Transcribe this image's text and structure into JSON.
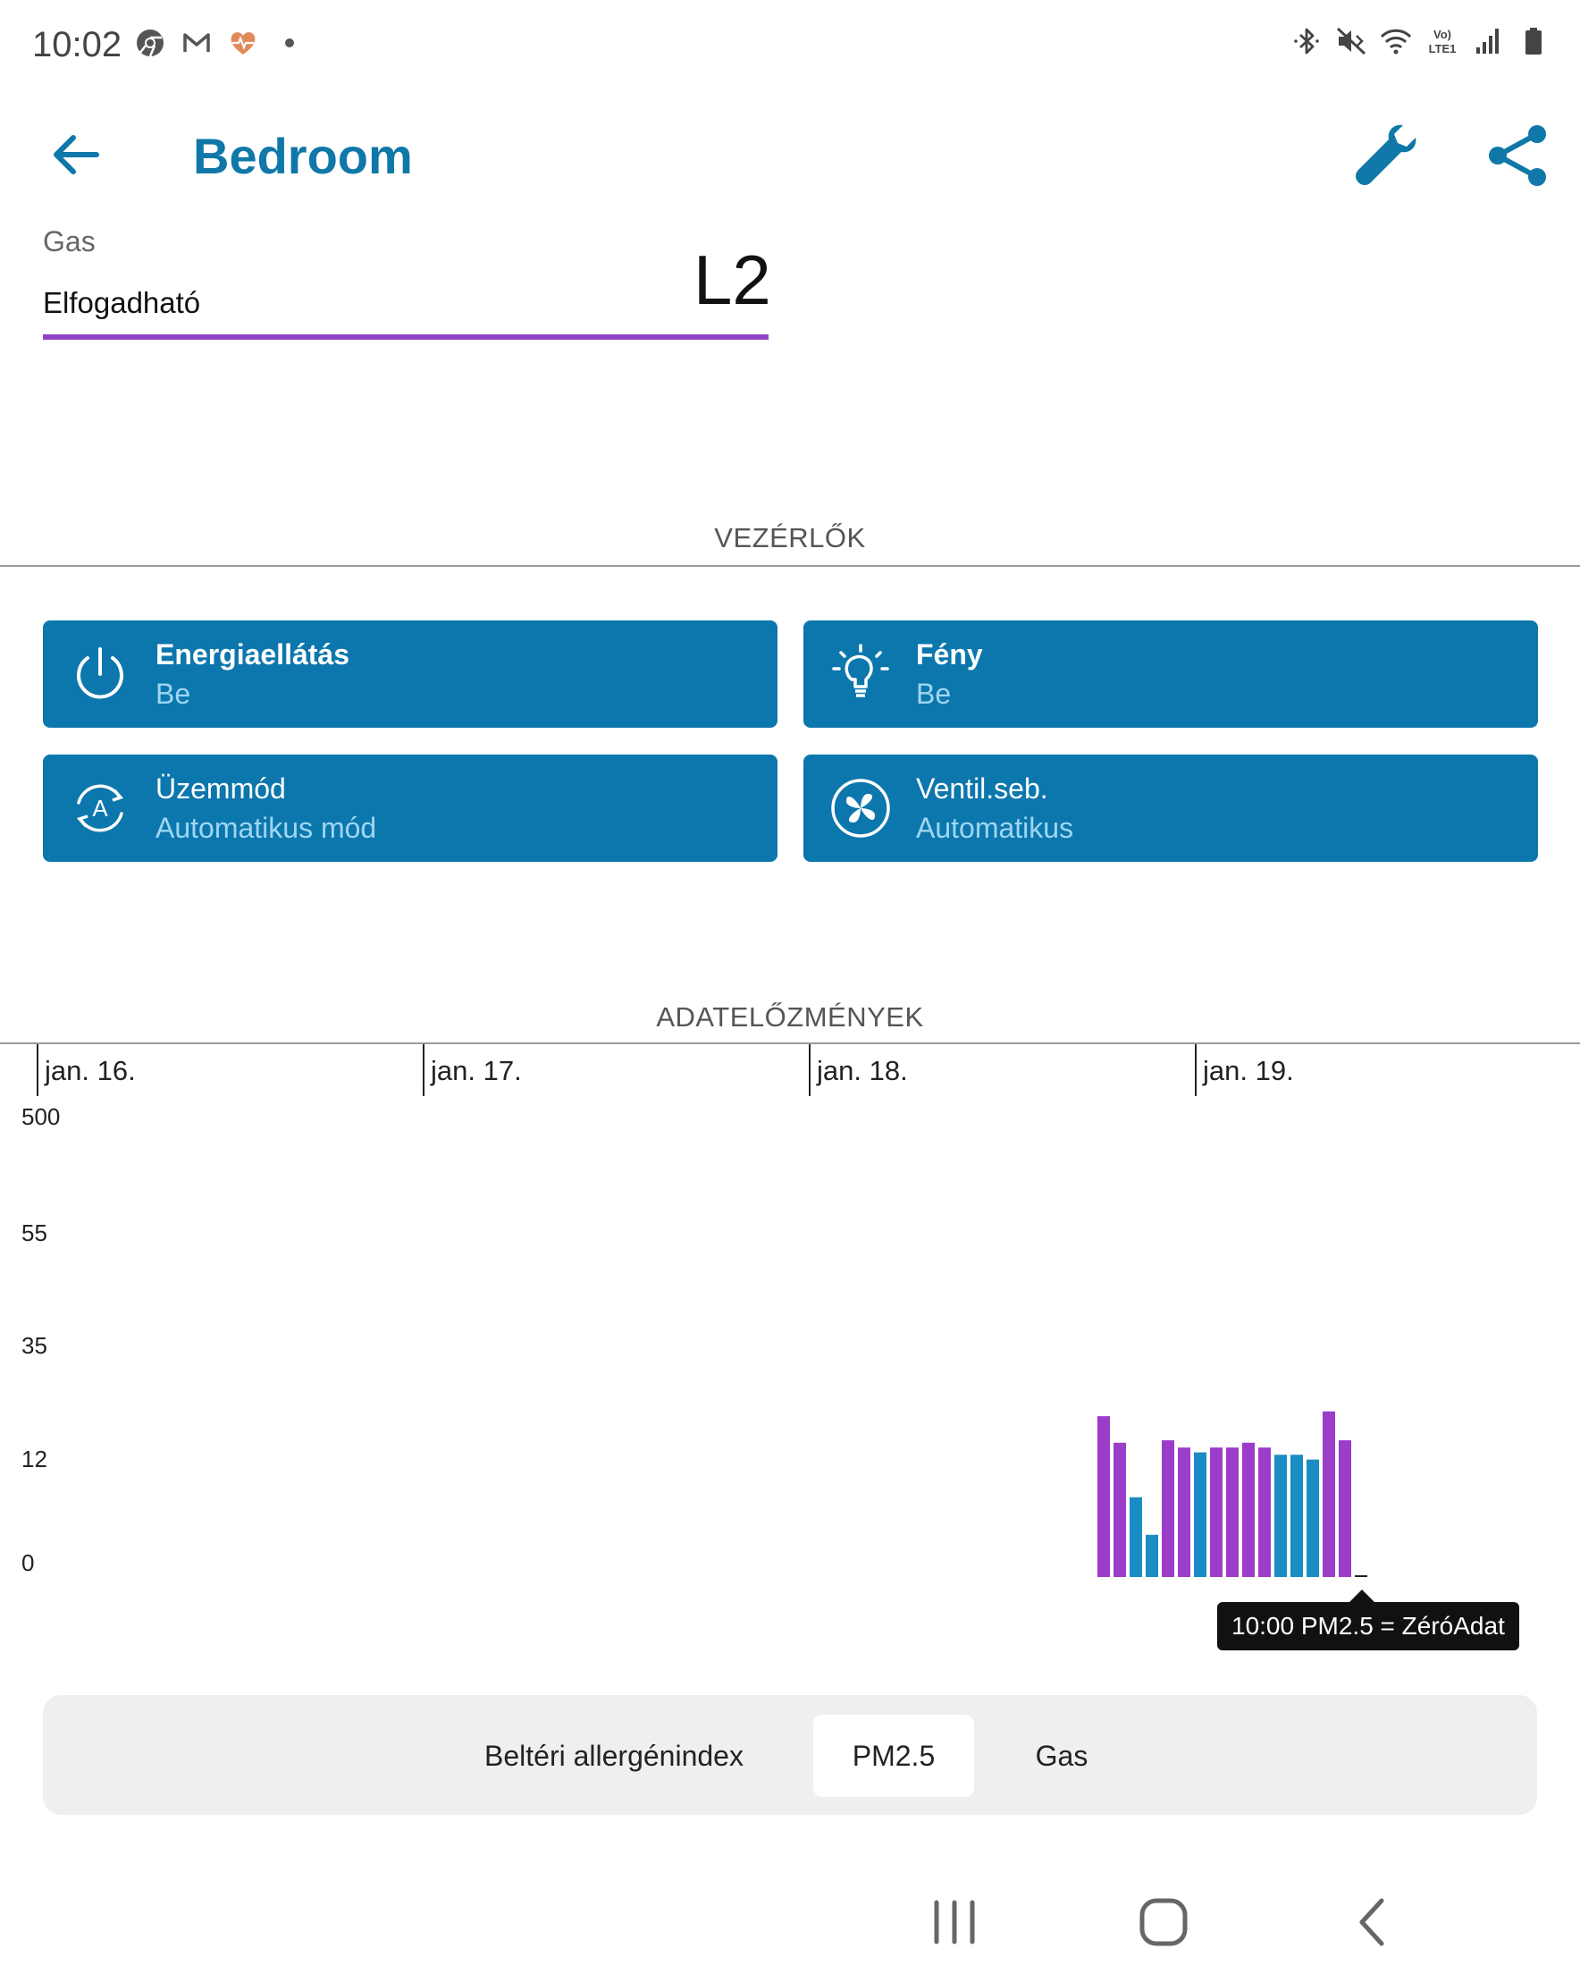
{
  "status_bar": {
    "time": "10:02",
    "left_icons": [
      "chrome-icon",
      "gmail-icon",
      "health-icon",
      "notification-dot-icon"
    ],
    "right_icons": [
      "bluetooth-icon",
      "mute-icon",
      "wifi-icon",
      "volte-icon",
      "signal-icon",
      "battery-icon"
    ],
    "volte_text": "Vo) LTE1"
  },
  "header": {
    "title": "Bedroom",
    "back_icon": "arrow-left-icon",
    "settings_icon": "wrench-icon",
    "share_icon": "share-icon",
    "accent_color": "#0f78a8"
  },
  "gas_field": {
    "label": "Gas",
    "value": "Elfogadható",
    "level": "L2",
    "underline_color": "#8e44c8"
  },
  "controls": {
    "section_title": "VEZÉRLŐK",
    "tile_color": "#0c77ad",
    "tiles": [
      {
        "title": "Energiaellátás",
        "subtitle": "Be",
        "icon": "power-icon"
      },
      {
        "title": "Fény",
        "subtitle": "Be",
        "icon": "lightbulb-icon"
      },
      {
        "title": "Üzemmód",
        "subtitle": "Automatikus mód",
        "icon": "auto-mode-icon"
      },
      {
        "title": "Ventil.seb.",
        "subtitle": "Automatikus",
        "icon": "fan-icon"
      }
    ]
  },
  "history": {
    "section_title": "ADATELŐZMÉNYEK",
    "tooltip": "10:00 PM2.5 = ZéróAdat",
    "tabs": [
      {
        "label": "Beltéri allergénindex",
        "active": false
      },
      {
        "label": "PM2.5",
        "active": true
      },
      {
        "label": "Gas",
        "active": false
      }
    ]
  },
  "chart_data": {
    "type": "bar",
    "date_labels": [
      "jan. 16.",
      "jan. 17.",
      "jan. 18.",
      "jan. 19."
    ],
    "y_tick_labels": [
      "500",
      "55",
      "35",
      "12",
      "0"
    ],
    "y_scale": "banded (non-linear)",
    "grid": false,
    "colors": {
      "purple": "#9b3dc9",
      "blue": "#1a8cc4"
    },
    "values": [
      22,
      16.5,
      8.5,
      4.5,
      17,
      15.5,
      14.5,
      15.5,
      15.5,
      16.5,
      15.5,
      14,
      14,
      13,
      23,
      17,
      0
    ],
    "bar_colors": [
      "purple",
      "purple",
      "blue",
      "blue",
      "purple",
      "purple",
      "blue",
      "purple",
      "purple",
      "purple",
      "purple",
      "blue",
      "blue",
      "blue",
      "purple",
      "purple",
      "purple"
    ]
  },
  "nav_bar": {
    "buttons": [
      "recent-apps-icon",
      "home-icon",
      "back-icon"
    ]
  }
}
